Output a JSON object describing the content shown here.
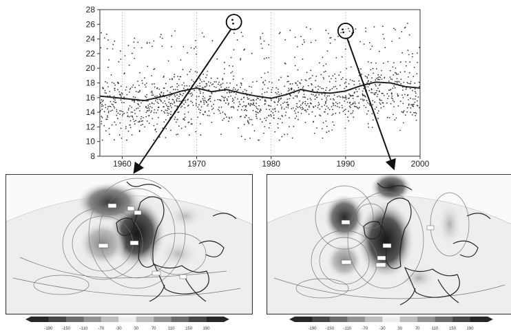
{
  "chart_data": [
    {
      "type": "scatter",
      "title": "",
      "xlabel": "",
      "ylabel": "",
      "xlim": [
        1957,
        2000
      ],
      "ylim": [
        8,
        28
      ],
      "x_ticks": [
        "1960",
        "1970",
        "1980",
        "1990",
        "2000"
      ],
      "y_ticks": [
        "8",
        "10",
        "12",
        "14",
        "16",
        "18",
        "20",
        "22",
        "24",
        "26",
        "28"
      ],
      "grid": "vertical dotted lines at decades",
      "scatter_range": {
        "typical_low": 12,
        "typical_high": 22
      },
      "series": [
        {
          "marker": "dot",
          "highlighted_points": [
            {
              "x": 1974.8,
              "y": 26.6
            },
            {
              "x": 1974.9,
              "y": 26.1
            },
            {
              "x": 1989.6,
              "y": 25.3
            },
            {
              "x": 1989.7,
              "y": 24.9
            }
          ]
        },
        {
          "type": "line",
          "x": [
            1957,
            1960,
            1963,
            1966,
            1968,
            1970,
            1972,
            1974,
            1976,
            1978,
            1980,
            1982,
            1984,
            1986,
            1988,
            1990,
            1992,
            1994,
            1996,
            1998,
            2000
          ],
          "y": [
            16.2,
            15.9,
            15.6,
            16.3,
            16.9,
            17.3,
            16.8,
            17.1,
            16.6,
            16.2,
            15.9,
            16.4,
            17.1,
            16.7,
            16.6,
            16.9,
            17.6,
            18.1,
            18.0,
            17.5,
            17.3
          ]
        }
      ],
      "annotations": [
        {
          "type": "circle",
          "x": 1975,
          "y": 26.3
        },
        {
          "type": "circle",
          "x": 1990,
          "y": 25.1
        }
      ]
    },
    {
      "type": "heatmap",
      "panel": "left",
      "colorbar_labels": [
        "-190",
        "-150",
        "-110",
        "-70",
        "-30",
        "30",
        "70",
        "110",
        "150",
        "190"
      ]
    },
    {
      "type": "heatmap",
      "panel": "right",
      "colorbar_labels": [
        "-190",
        "-150",
        "-110",
        "-70",
        "-30",
        "30",
        "70",
        "110",
        "150",
        "190"
      ]
    }
  ],
  "colors": {
    "max_dark": "#1e1e1e",
    "neutral": "#ededed",
    "axis": "#333333"
  }
}
